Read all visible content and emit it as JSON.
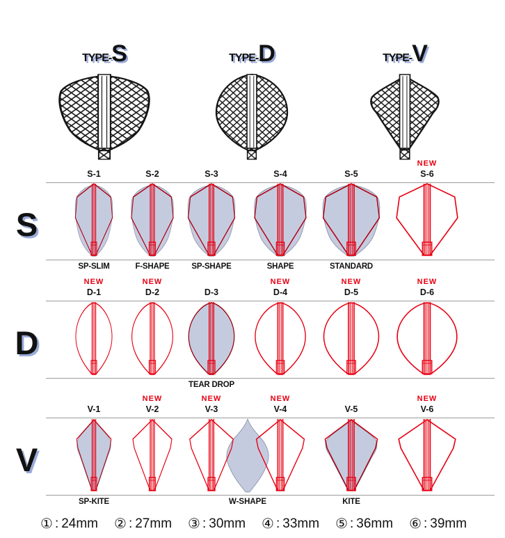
{
  "types": [
    {
      "prefix": "TYPE-",
      "letter": "S"
    },
    {
      "prefix": "TYPE-",
      "letter": "D"
    },
    {
      "prefix": "TYPE-",
      "letter": "V"
    }
  ],
  "new_badge": "NEW",
  "rows": [
    {
      "letter": "S",
      "shape": "shield",
      "cells": [
        {
          "id": "S-1",
          "is_new": false,
          "filled": true,
          "label": "SP-SLIM"
        },
        {
          "id": "S-2",
          "is_new": false,
          "filled": true,
          "label": "F-SHAPE"
        },
        {
          "id": "S-3",
          "is_new": false,
          "filled": true,
          "label": "SP-SHAPE"
        },
        {
          "id": "S-4",
          "is_new": false,
          "filled": true,
          "label": "SHAPE"
        },
        {
          "id": "S-5",
          "is_new": false,
          "filled": true,
          "label": "STANDARD"
        },
        {
          "id": "S-6",
          "is_new": true,
          "filled": false,
          "label": ""
        }
      ]
    },
    {
      "letter": "D",
      "shape": "teardrop",
      "cells": [
        {
          "id": "D-1",
          "is_new": true,
          "filled": false,
          "label": ""
        },
        {
          "id": "D-2",
          "is_new": true,
          "filled": false,
          "label": ""
        },
        {
          "id": "D-3",
          "is_new": false,
          "filled": true,
          "label": "TEAR DROP"
        },
        {
          "id": "D-4",
          "is_new": true,
          "filled": false,
          "label": ""
        },
        {
          "id": "D-5",
          "is_new": true,
          "filled": false,
          "label": ""
        },
        {
          "id": "D-6",
          "is_new": true,
          "filled": false,
          "label": ""
        }
      ]
    },
    {
      "letter": "V",
      "shape": "kite",
      "cells": [
        {
          "id": "V-1",
          "is_new": false,
          "filled": true,
          "label": "SP-KITE"
        },
        {
          "id": "V-2",
          "is_new": true,
          "filled": false,
          "label": ""
        },
        {
          "id": "V-3",
          "is_new": true,
          "filled": false,
          "label": ""
        },
        {
          "id": "V-4",
          "is_new": true,
          "filled": false,
          "label": ""
        },
        {
          "id": "V-5",
          "is_new": false,
          "filled": true,
          "label": "KITE"
        },
        {
          "id": "V-6",
          "is_new": true,
          "filled": false,
          "label": ""
        }
      ],
      "extra_shape": {
        "label": "W-SHAPE"
      }
    }
  ],
  "legend_separator": ":",
  "legend": [
    {
      "num": "①",
      "value": "24mm"
    },
    {
      "num": "②",
      "value": "27mm"
    },
    {
      "num": "③",
      "value": "30mm"
    },
    {
      "num": "④",
      "value": "33mm"
    },
    {
      "num": "⑤",
      "value": "36mm"
    },
    {
      "num": "⑥",
      "value": "39mm"
    }
  ],
  "colors": {
    "red": "#e60012",
    "shape_fill": "#c5cbdf",
    "shape_fill_edge": "#8e95ab",
    "shadow_blue": "#9aaad8",
    "line_gray": "#9b9b9b",
    "drawing_ink": "#151515"
  }
}
